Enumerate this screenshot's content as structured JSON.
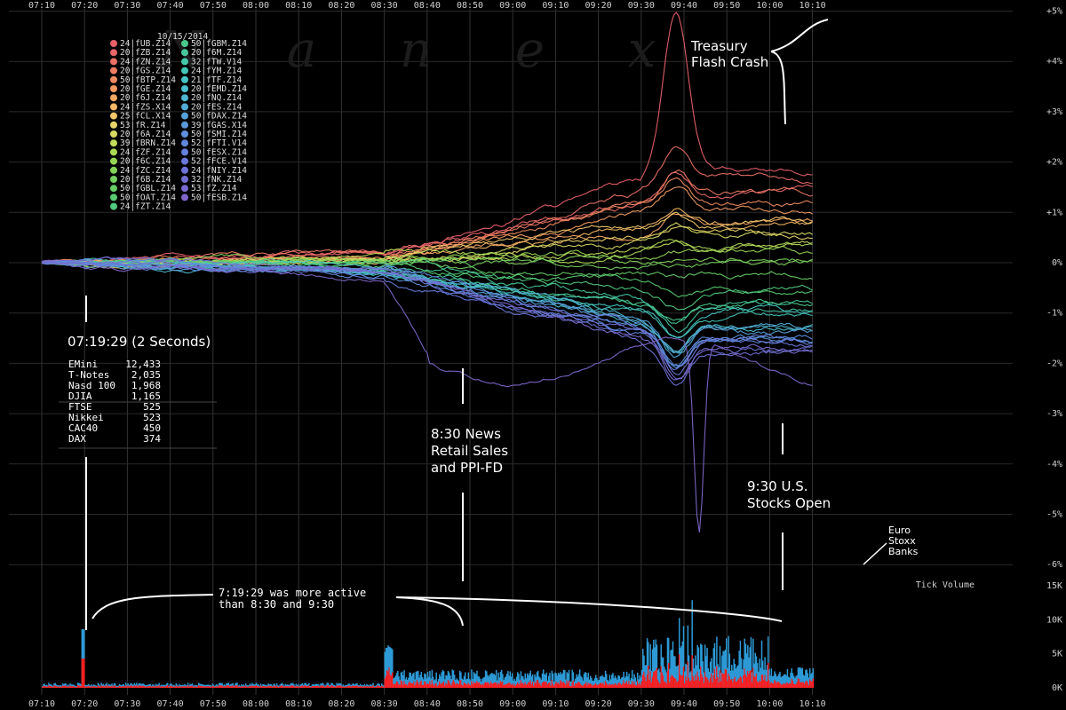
{
  "watermark": "N a n e x",
  "chart_data": {
    "type": "line",
    "date": "10/15/2014",
    "time_ticks": [
      "07:10",
      "07:20",
      "07:30",
      "07:40",
      "07:50",
      "08:00",
      "08:10",
      "08:20",
      "08:30",
      "08:40",
      "08:50",
      "09:00",
      "09:10",
      "09:20",
      "09:30",
      "09:40",
      "09:50",
      "10:00",
      "10:10"
    ],
    "price_ylim": [
      -6.5,
      5
    ],
    "price_ticks": [
      "+5%",
      "+4%",
      "+3%",
      "+2%",
      "+1%",
      "0%",
      "-1%",
      "-2%",
      "-3%",
      "-4%",
      "-5%",
      "-6%"
    ],
    "volume_ylim": [
      0,
      15000
    ],
    "volume_ticks": [
      "15K",
      "10K",
      "5K",
      "0K"
    ],
    "volume_label": "Tick Volume",
    "legend_col1": [
      {
        "n": "24",
        "sym": "fUB.Z14",
        "color": "#e8606a"
      },
      {
        "n": "20",
        "sym": "fZB.Z14",
        "color": "#e8666a"
      },
      {
        "n": "24",
        "sym": "fZN.Z14",
        "color": "#ea6f66"
      },
      {
        "n": "20",
        "sym": "fGS.Z14",
        "color": "#ec7b62"
      },
      {
        "n": "50",
        "sym": "fBTP.Z14",
        "color": "#ef8a60"
      },
      {
        "n": "20",
        "sym": "fGE.Z14",
        "color": "#f29a60"
      },
      {
        "n": "20",
        "sym": "f6J.Z14",
        "color": "#f4a862"
      },
      {
        "n": "24",
        "sym": "fZS.X14",
        "color": "#f4b866"
      },
      {
        "n": "25",
        "sym": "fCL.X14",
        "color": "#f2c66a"
      },
      {
        "n": "53",
        "sym": "fR.Z14",
        "color": "#e8d46a"
      },
      {
        "n": "20",
        "sym": "f6A.Z14",
        "color": "#d6da62"
      },
      {
        "n": "39",
        "sym": "fBRN.Z14",
        "color": "#c2dc5a"
      },
      {
        "n": "24",
        "sym": "fZF.Z14",
        "color": "#aada56"
      },
      {
        "n": "20",
        "sym": "f6C.Z14",
        "color": "#96d656"
      },
      {
        "n": "24",
        "sym": "fZC.Z14",
        "color": "#84d25a"
      },
      {
        "n": "20",
        "sym": "f6B.Z14",
        "color": "#74d05e"
      },
      {
        "n": "50",
        "sym": "fGBL.Z14",
        "color": "#66ce66"
      },
      {
        "n": "50",
        "sym": "fOAT.Z14",
        "color": "#5acc72"
      },
      {
        "n": "24",
        "sym": "fZT.Z14",
        "color": "#50ca80"
      }
    ],
    "legend_col2": [
      {
        "n": "50",
        "sym": "fGBM.Z14",
        "color": "#4ac88c"
      },
      {
        "n": "20",
        "sym": "f6M.Z14",
        "color": "#46c89a"
      },
      {
        "n": "32",
        "sym": "fTW.V14",
        "color": "#44c8a8"
      },
      {
        "n": "24",
        "sym": "fYM.Z14",
        "color": "#44c6b6"
      },
      {
        "n": "21",
        "sym": "fTF.Z14",
        "color": "#46c4c2"
      },
      {
        "n": "20",
        "sym": "fEMD.Z14",
        "color": "#4abecc"
      },
      {
        "n": "20",
        "sym": "fNQ.Z14",
        "color": "#4eb6d2"
      },
      {
        "n": "20",
        "sym": "fES.Z14",
        "color": "#52acd6"
      },
      {
        "n": "50",
        "sym": "fDAX.Z14",
        "color": "#56a2d8"
      },
      {
        "n": "39",
        "sym": "fGAS.X14",
        "color": "#5a98da"
      },
      {
        "n": "50",
        "sym": "fSMI.Z14",
        "color": "#5e8edc"
      },
      {
        "n": "52",
        "sym": "fFTI.V14",
        "color": "#6286dc"
      },
      {
        "n": "50",
        "sym": "fESX.Z14",
        "color": "#667edc"
      },
      {
        "n": "52",
        "sym": "fFCE.V14",
        "color": "#6a78da"
      },
      {
        "n": "24",
        "sym": "fNIY.Z14",
        "color": "#6e72d6"
      },
      {
        "n": "32",
        "sym": "fNK.Z14",
        "color": "#736ed2"
      },
      {
        "n": "53",
        "sym": "fZ.Z14",
        "color": "#786ace"
      },
      {
        "n": "50",
        "sym": "fESB.Z14",
        "color": "#7e66ca"
      }
    ],
    "series_end_values": [
      1.8,
      1.35,
      1.55,
      1.45,
      1.2,
      0.95,
      0.85,
      0.8,
      0.75,
      0.6,
      0.5,
      0.4,
      0.3,
      0.2,
      0.1,
      0.0,
      -0.2,
      -0.45,
      -0.6,
      -0.8,
      -0.9,
      -1.0,
      -1.05,
      -1.1,
      -1.2,
      -1.3,
      -1.35,
      -1.4,
      -1.45,
      -1.5,
      -1.55,
      -1.6,
      -1.6,
      -1.65,
      -1.7,
      -1.75,
      -2.4
    ],
    "annotations": {
      "flash_crash": [
        "Treasury",
        "Flash Crash"
      ],
      "first_event_title": "07:19:29 (2 Seconds)",
      "first_event_table": [
        {
          "name": "EMini",
          "value": "12,433"
        },
        {
          "name": "T-Notes",
          "value": "2,035"
        },
        {
          "name": "Nasd 100",
          "value": "1,968"
        },
        {
          "name": "DJIA",
          "value": "1,165"
        },
        {
          "name": "FTSE",
          "value": "525"
        },
        {
          "name": "Nikkei",
          "value": "523"
        },
        {
          "name": "CAC40",
          "value": "450"
        },
        {
          "name": "DAX",
          "value": "374"
        }
      ],
      "news_830": [
        "8:30 News",
        "Retail Sales",
        "and PPI-FD"
      ],
      "open_930": [
        "9:30 U.S.",
        "Stocks Open"
      ],
      "euro_banks": [
        "Euro",
        "Stoxx",
        "Banks"
      ],
      "activity_note": [
        "7:19:29 was more active",
        "than 8:30 and 9:30"
      ]
    }
  }
}
